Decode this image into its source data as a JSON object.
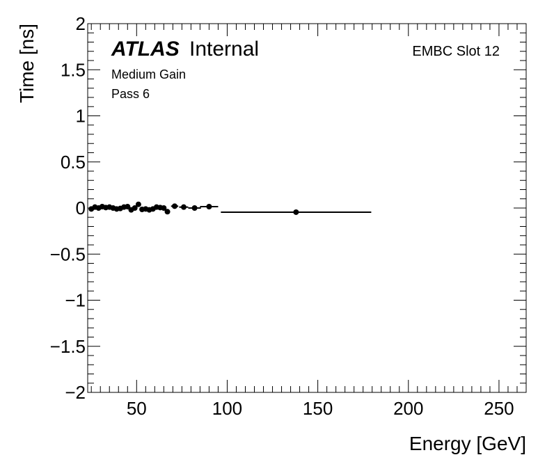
{
  "chart_data": {
    "type": "scatter",
    "title": "",
    "xlabel": "Energy [GeV]",
    "ylabel": "Time [ns]",
    "xlim": [
      23,
      265
    ],
    "ylim": [
      -2,
      2
    ],
    "x_ticks": [
      "50",
      "100",
      "150",
      "200",
      "250"
    ],
    "x_tick_values": [
      50,
      100,
      150,
      200,
      250
    ],
    "y_ticks": [
      "2",
      "1.5",
      "1",
      "0.5",
      "0",
      "−0.5",
      "−1",
      "−1.5",
      "−2"
    ],
    "y_tick_values": [
      2,
      1.5,
      1,
      0.5,
      0,
      -0.5,
      -1,
      -1.5,
      -2
    ],
    "grid": false,
    "legend": "none",
    "color": "#000000",
    "annotations": {
      "atlas_bold": "ATLAS",
      "atlas_rest": "Internal",
      "gain": "Medium Gain",
      "pass": "Pass 6",
      "slot": "EMBC Slot 12"
    },
    "points": [
      {
        "x": 25,
        "y": -0.01,
        "xerr": 1
      },
      {
        "x": 27,
        "y": 0.01,
        "xerr": 1
      },
      {
        "x": 29,
        "y": 0.0,
        "xerr": 1
      },
      {
        "x": 31,
        "y": 0.015,
        "xerr": 1
      },
      {
        "x": 33,
        "y": 0.005,
        "xerr": 1
      },
      {
        "x": 35,
        "y": 0.01,
        "xerr": 1
      },
      {
        "x": 37,
        "y": 0.0,
        "xerr": 1
      },
      {
        "x": 39,
        "y": -0.01,
        "xerr": 1
      },
      {
        "x": 41,
        "y": -0.005,
        "xerr": 1
      },
      {
        "x": 43,
        "y": 0.01,
        "xerr": 1
      },
      {
        "x": 45,
        "y": 0.015,
        "xerr": 1
      },
      {
        "x": 47,
        "y": -0.02,
        "xerr": 1
      },
      {
        "x": 49,
        "y": 0.0,
        "xerr": 1
      },
      {
        "x": 51,
        "y": 0.04,
        "xerr": 1
      },
      {
        "x": 53,
        "y": -0.015,
        "xerr": 1
      },
      {
        "x": 55,
        "y": -0.01,
        "xerr": 1
      },
      {
        "x": 57,
        "y": -0.02,
        "xerr": 1
      },
      {
        "x": 59,
        "y": -0.01,
        "xerr": 1
      },
      {
        "x": 61,
        "y": 0.01,
        "xerr": 1
      },
      {
        "x": 63,
        "y": 0.005,
        "xerr": 1
      },
      {
        "x": 65,
        "y": 0.0,
        "xerr": 1
      },
      {
        "x": 67,
        "y": -0.04,
        "xerr": 1
      },
      {
        "x": 71,
        "y": 0.02,
        "xerr": 2
      },
      {
        "x": 76,
        "y": 0.01,
        "xerr": 2.5
      },
      {
        "x": 82,
        "y": 0.0,
        "xerr": 3.5
      },
      {
        "x": 90,
        "y": 0.015,
        "xerr": 5
      },
      {
        "x": 138,
        "y": -0.045,
        "xerr": 41.5
      }
    ]
  }
}
